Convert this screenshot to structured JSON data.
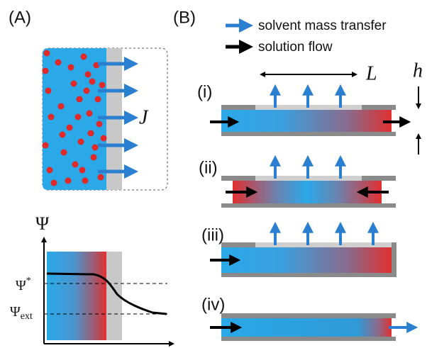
{
  "panel_a": {
    "label": "(A)",
    "flux": "J",
    "plot": {
      "axis": "Ψ",
      "level_star": {
        "symbol": "Ψ",
        "sup": "*"
      },
      "level_ext": {
        "symbol": "Ψ",
        "sub": "ext"
      }
    }
  },
  "panel_b": {
    "label": "(B)",
    "legend": [
      "solvent mass transfer",
      "solution flow"
    ],
    "length": "L",
    "height": "h",
    "rows": [
      "(i)",
      "(ii)",
      "(iii)",
      "(iv)"
    ]
  }
}
